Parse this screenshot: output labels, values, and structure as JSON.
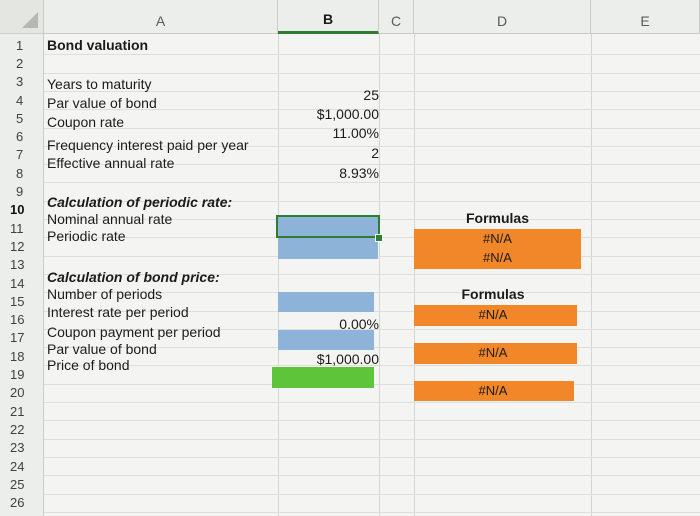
{
  "columns": {
    "a": "A",
    "b": "B",
    "c": "C",
    "d": "D",
    "e": "E"
  },
  "rows": [
    "1",
    "2",
    "3",
    "4",
    "5",
    "6",
    "7",
    "8",
    "9",
    "10",
    "11",
    "12",
    "13",
    "14",
    "15",
    "16",
    "17",
    "18",
    "19",
    "20",
    "21",
    "22",
    "23",
    "24",
    "25",
    "26"
  ],
  "col_a": {
    "r1": "Bond valuation",
    "r3": "Years to maturity",
    "r4": "Par value of bond",
    "r5": "Coupon rate",
    "r6": "Frequency interest paid per year",
    "r7": "Effective annual rate",
    "r9": "Calculation of periodic rate:",
    "r10": "Nominal annual rate",
    "r11": "Periodic rate",
    "r13": "Calculation of bond price:",
    "r14": "Number of periods",
    "r15": "Interest rate per period",
    "r16": "Coupon payment per period",
    "r17": "Par value of bond",
    "r18": "Price of bond"
  },
  "col_b": {
    "r3": "25",
    "r4": "$1,000.00",
    "r5": "11.00%",
    "r6": "2",
    "r7": "8.93%",
    "r16": "0.00%",
    "r18": "$1,000.00"
  },
  "col_d": {
    "r10": "Formulas",
    "r11": "#N/A",
    "r12": "#N/A",
    "r14": "Formulas",
    "r15": "#N/A",
    "r17": "#N/A",
    "r19": "#N/A"
  },
  "colors": {
    "input_blue": "#8db3d8",
    "result_green": "#5ec43a",
    "formula_orange": "#f2872a",
    "selection_green": "#2e7d32"
  }
}
